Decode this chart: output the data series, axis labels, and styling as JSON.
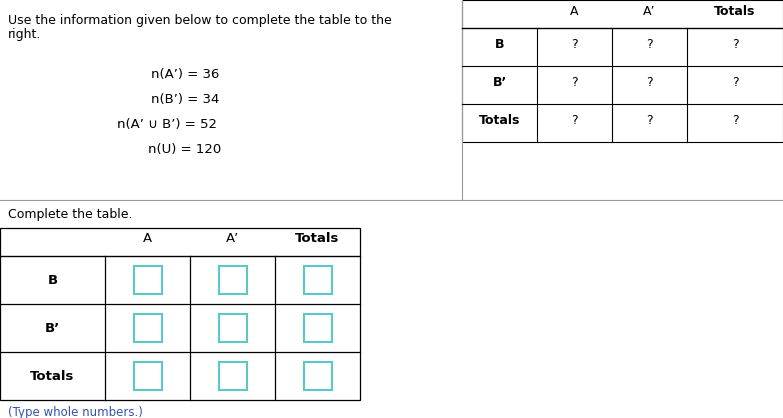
{
  "bg_color": "#ffffff",
  "text_color": "#000000",
  "info_line1": "Use the information given below to complete the table to the",
  "info_line2": "right.",
  "given_info": [
    "n(A’) = 36",
    "n(B’) = 34",
    "n(A’ ∪ B’) = 52",
    "n(U) = 120"
  ],
  "top_table_col_headers": [
    "A",
    "A’",
    "Totals"
  ],
  "top_table_row_labels": [
    "B",
    "B’",
    "Totals"
  ],
  "top_table_values": [
    [
      "?",
      "?",
      "?"
    ],
    [
      "?",
      "?",
      "?"
    ],
    [
      "?",
      "?",
      "?"
    ]
  ],
  "complete_label": "Complete the table.",
  "bottom_col_headers": [
    "A",
    "A’",
    "Totals"
  ],
  "bottom_row_labels": [
    "B",
    "B’",
    "Totals"
  ],
  "type_note": "(Type whole numbers.)",
  "box_color": "#5bc8c8",
  "header_line_color": "#000000",
  "divider_line_color": "#999999"
}
